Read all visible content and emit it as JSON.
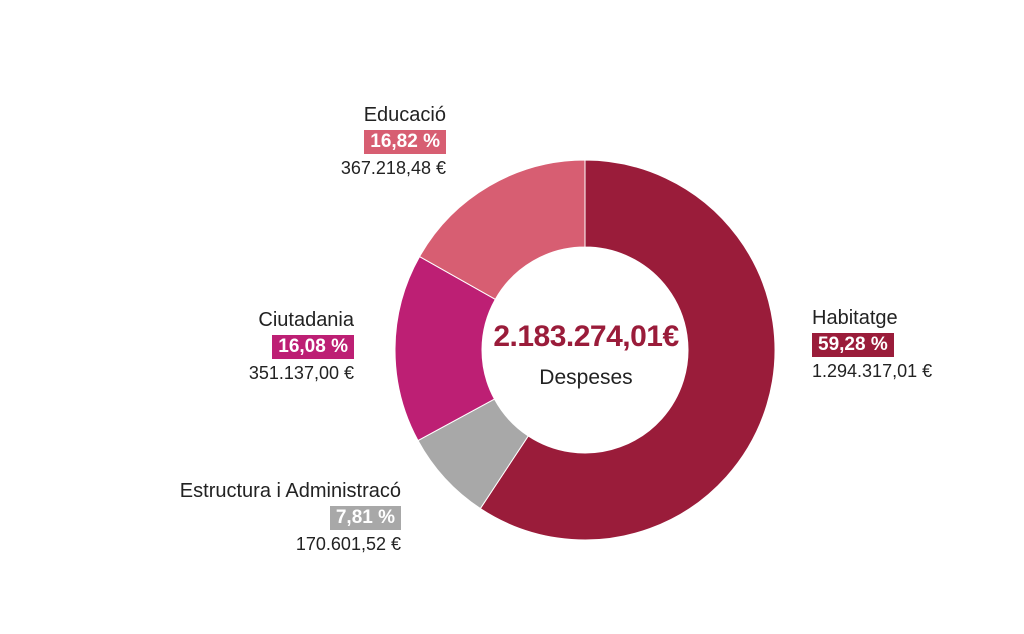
{
  "chart_data": {
    "type": "pie",
    "variant": "donut",
    "center": {
      "total": "2.183.274,01€",
      "label": "Despeses"
    },
    "slices": [
      {
        "name": "Habitatge",
        "percent": 59.28,
        "percent_label": "59,28 %",
        "amount": "1.294.317,01 €",
        "color": "#9a1c3a"
      },
      {
        "name": "Estructura i Administracó",
        "percent": 7.81,
        "percent_label": "7,81 %",
        "amount": "170.601,52 €",
        "color": "#a8a8a8"
      },
      {
        "name": "Ciutadania",
        "percent": 16.08,
        "percent_label": "16,08 %",
        "amount": "351.137,00 €",
        "color": "#bd1f74"
      },
      {
        "name": "Educació",
        "percent": 16.82,
        "percent_label": "16,82 %",
        "amount": "367.218,48 €",
        "color": "#d75e72"
      }
    ]
  }
}
